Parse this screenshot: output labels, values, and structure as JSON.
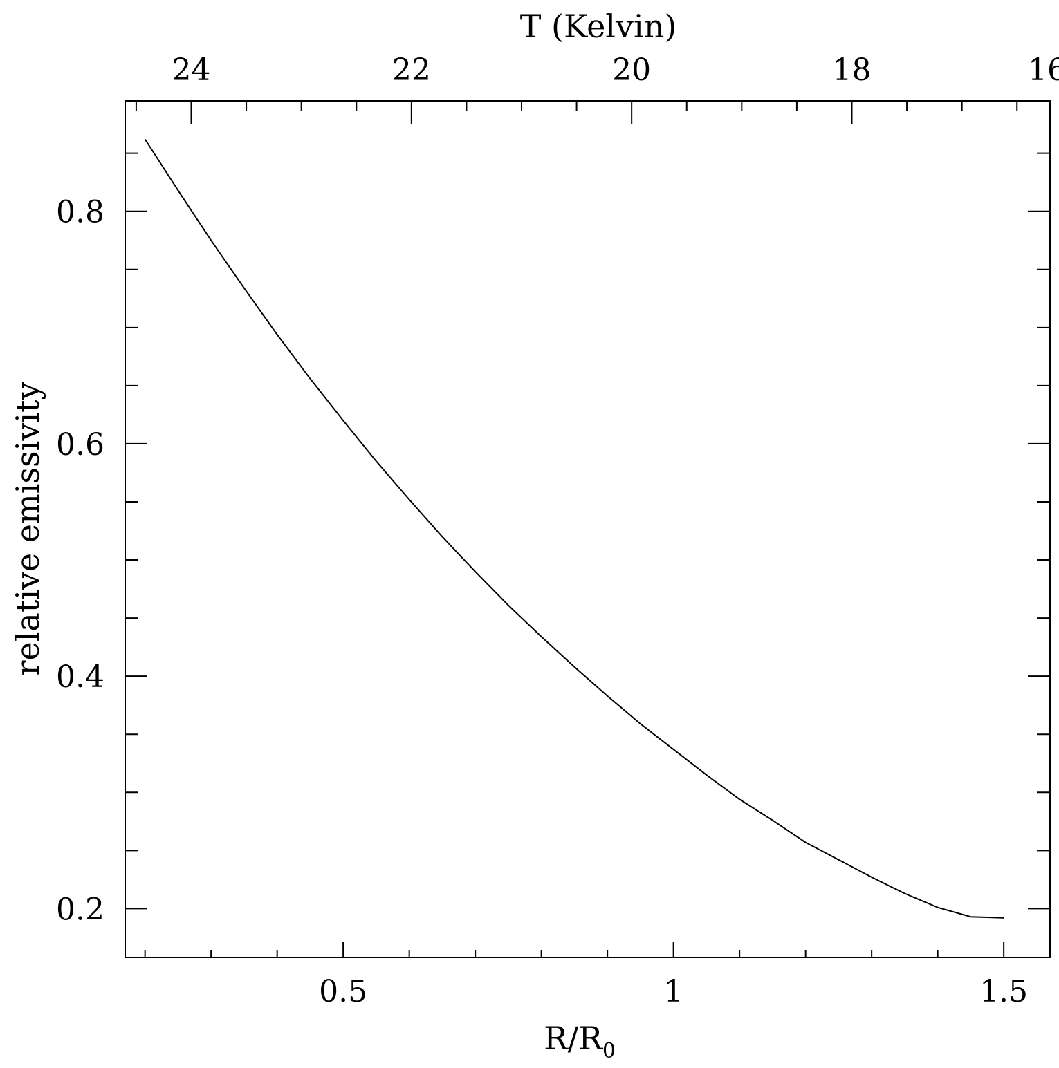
{
  "chart_data": {
    "type": "line",
    "title": "",
    "xlabel": "R/R",
    "xlabel_sub": "0",
    "ylabel": "relative emissivity",
    "top_axis_label": "T (Kelvin)",
    "xlim": [
      0.17,
      1.57
    ],
    "ylim": [
      0.158,
      0.895
    ],
    "x_ticks_major": [
      0.5,
      1,
      1.5
    ],
    "x_tick_labels": [
      "0.5",
      "1",
      "1.5"
    ],
    "x_ticks_minor_step": 0.1,
    "y_ticks_major": [
      0.2,
      0.4,
      0.6,
      0.8
    ],
    "y_tick_labels": [
      "0.2",
      "0.4",
      "0.6",
      "0.8"
    ],
    "y_ticks_minor_step": 0.05,
    "top_ticks_major": [
      24,
      22,
      20,
      18,
      16
    ],
    "top_tick_labels": [
      "24",
      "22",
      "20",
      "18",
      "16"
    ],
    "top_ticks_minor_step": 0.5,
    "top_axis_map": {
      "T_at_left": 24.6,
      "T_per_unit_x": -6.0
    },
    "series": [
      {
        "x": [
          0.2,
          0.25,
          0.3,
          0.35,
          0.4,
          0.45,
          0.5,
          0.55,
          0.6,
          0.65,
          0.7,
          0.75,
          0.8,
          0.85,
          0.9,
          0.95,
          1.0,
          1.05,
          1.1,
          1.15,
          1.2,
          1.25,
          1.3,
          1.35,
          1.4,
          1.45,
          1.5
        ],
        "y": [
          0.862,
          0.818,
          0.775,
          0.734,
          0.694,
          0.656,
          0.62,
          0.585,
          0.552,
          0.52,
          0.49,
          0.461,
          0.434,
          0.408,
          0.383,
          0.359,
          0.337,
          0.315,
          0.294,
          0.276,
          0.257,
          0.242,
          0.227,
          0.213,
          0.201,
          0.193,
          0.192
        ]
      }
    ]
  }
}
